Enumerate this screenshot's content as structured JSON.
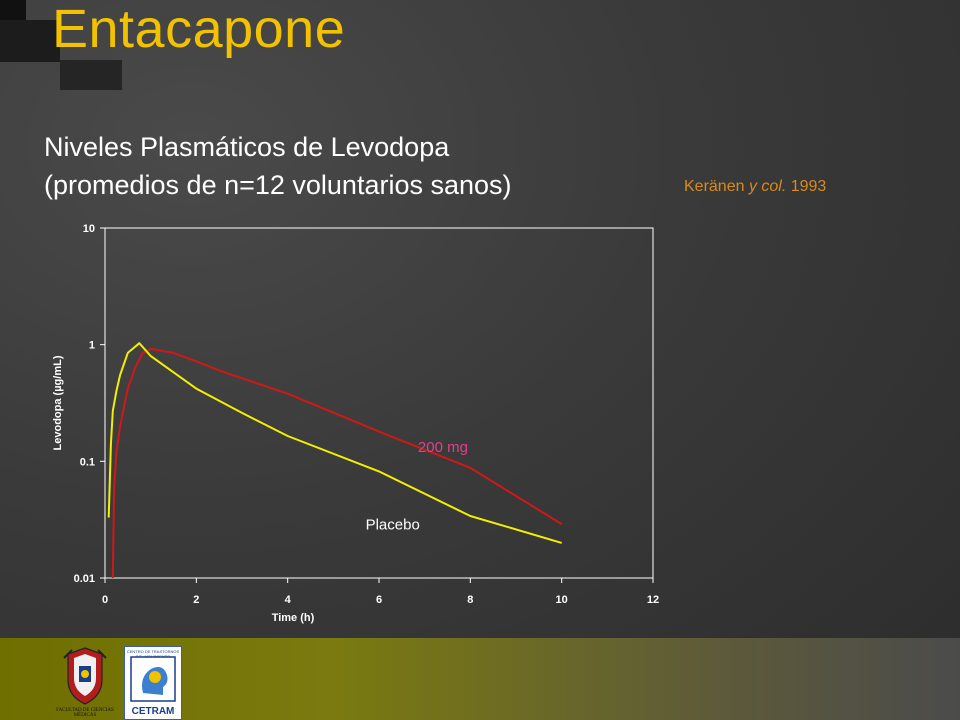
{
  "slide": {
    "title": "Entacapone",
    "subtitle_line1": "Niveles Plasmáticos de Levodopa",
    "subtitle_line2": "(promedios de n=12  voluntarios sanos)",
    "citation_author": "Keränen ",
    "citation_italic": "y col.",
    "citation_year": " 1993"
  },
  "logos": {
    "university_caption": "FACULTAD DE CIENCIAS MÉDICAS",
    "cetram_top": "CENTRO DE TRASTORNOS DEL MOVIMIENTO",
    "cetram_name": "CETRAM"
  },
  "colors": {
    "title": "#f2c200",
    "series_200mg": "#d01818",
    "series_placebo": "#f0f000",
    "label_200mg": "#e0408a",
    "label_placebo": "#ffffff",
    "axis": "#ffffff"
  },
  "chart_data": {
    "type": "line",
    "title": "",
    "xlabel": "Time (h)",
    "ylabel": "Levodopa (µg/mL)",
    "x_scale": "linear",
    "y_scale": "log",
    "xlim": [
      0,
      12
    ],
    "ylim": [
      0.01,
      10
    ],
    "x_ticks": [
      "0",
      "2",
      "4",
      "6",
      "8",
      "10",
      "12"
    ],
    "y_ticks": [
      "0.01",
      "0.1",
      "1",
      "10"
    ],
    "grid": false,
    "series": [
      {
        "name": "200 mg",
        "color": "#d01818",
        "points": [
          [
            0.17,
            0.01
          ],
          [
            0.2,
            0.06
          ],
          [
            0.25,
            0.12
          ],
          [
            0.33,
            0.2
          ],
          [
            0.42,
            0.3
          ],
          [
            0.5,
            0.42
          ],
          [
            0.67,
            0.65
          ],
          [
            0.83,
            0.85
          ],
          [
            1.0,
            0.92
          ],
          [
            1.5,
            0.85
          ],
          [
            2.0,
            0.72
          ],
          [
            2.5,
            0.6
          ],
          [
            4.0,
            0.38
          ],
          [
            6.0,
            0.18
          ],
          [
            8.0,
            0.088
          ],
          [
            10.0,
            0.029
          ]
        ]
      },
      {
        "name": "Placebo",
        "color": "#f0f000",
        "points": [
          [
            0.08,
            0.033
          ],
          [
            0.13,
            0.14
          ],
          [
            0.17,
            0.27
          ],
          [
            0.25,
            0.4
          ],
          [
            0.33,
            0.55
          ],
          [
            0.5,
            0.85
          ],
          [
            0.75,
            1.03
          ],
          [
            1.0,
            0.8
          ],
          [
            1.5,
            0.58
          ],
          [
            2.0,
            0.42
          ],
          [
            3.0,
            0.26
          ],
          [
            4.0,
            0.165
          ],
          [
            6.0,
            0.082
          ],
          [
            8.0,
            0.034
          ],
          [
            10.0,
            0.02
          ]
        ]
      }
    ],
    "annotations": [
      {
        "text": "200 mg",
        "series": 0
      },
      {
        "text": "Placebo",
        "series": 1
      }
    ]
  }
}
